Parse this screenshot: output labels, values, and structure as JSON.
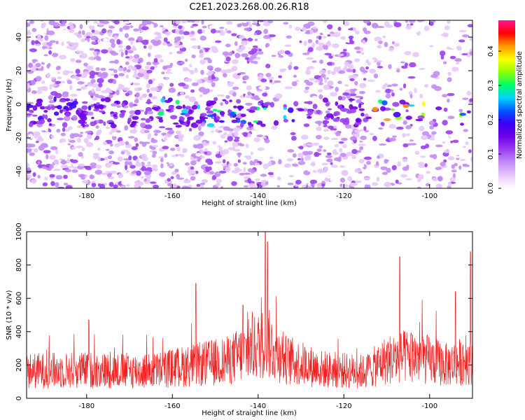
{
  "figure": {
    "title": "C2E1.2023.268.00.26.R18"
  },
  "colors": {
    "snr_line": "#ee2222",
    "axis": "#000000",
    "colormap": [
      "#ffffff",
      "#e7c8fb",
      "#c38cf7",
      "#9a3ff2",
      "#7000e8",
      "#3a00f5",
      "#0057ff",
      "#00d4ff",
      "#00ff66",
      "#8cff00",
      "#ffff00",
      "#ff9900",
      "#ff0000",
      "#ff1493"
    ]
  },
  "chart_data": [
    {
      "type": "heatmap",
      "title": "C2E1.2023.268.00.26.R18",
      "xlabel": "Height of straight line (km)",
      "ylabel": "Frequency (Hz)",
      "xlim": [
        -194,
        -90
      ],
      "ylim": [
        -50,
        50
      ],
      "x_ticks": [
        -180,
        -160,
        -140,
        -120,
        -100
      ],
      "y_ticks": [
        -40,
        -20,
        0,
        20,
        40
      ],
      "colorbar": {
        "label": "Normalized spectral amplitude",
        "range": [
          0.0,
          0.49
        ],
        "ticks": [
          0.0,
          0.1,
          0.2,
          0.3,
          0.4
        ]
      },
      "band": {
        "center_hz": -5,
        "half_width_hz": 8
      },
      "bright_regions_km": [
        {
          "from": -194,
          "to": -172,
          "peak": 0.2
        },
        {
          "from": -163,
          "to": -127,
          "peak": 0.3
        },
        {
          "from": -113,
          "to": -90,
          "peak": 0.46
        }
      ],
      "sparse_regions_km": [
        {
          "from": -138,
          "to": -129
        },
        {
          "from": -114,
          "to": -90
        }
      ]
    },
    {
      "type": "line",
      "xlabel": "Height of straight line (km)",
      "ylabel": "SNR (10 * v/v)",
      "xlim": [
        -194,
        -90
      ],
      "ylim": [
        0,
        1000
      ],
      "x_ticks": [
        -180,
        -160,
        -140,
        -120,
        -100
      ],
      "y_ticks": [
        0,
        200,
        400,
        600,
        800,
        1000
      ],
      "baseline": [
        {
          "x": -194,
          "y": 160
        },
        {
          "x": -180,
          "y": 165
        },
        {
          "x": -165,
          "y": 160
        },
        {
          "x": -155,
          "y": 195
        },
        {
          "x": -147,
          "y": 220
        },
        {
          "x": -142,
          "y": 280
        },
        {
          "x": -138,
          "y": 330
        },
        {
          "x": -134,
          "y": 230
        },
        {
          "x": -125,
          "y": 170
        },
        {
          "x": -115,
          "y": 155
        },
        {
          "x": -110,
          "y": 225
        },
        {
          "x": -104,
          "y": 250
        },
        {
          "x": -96,
          "y": 195
        },
        {
          "x": -90,
          "y": 230
        }
      ],
      "peaks": [
        {
          "x": -179.5,
          "y": 470
        },
        {
          "x": -154.5,
          "y": 690
        },
        {
          "x": -143.5,
          "y": 560
        },
        {
          "x": -138.3,
          "y": 1000
        },
        {
          "x": -137.8,
          "y": 940
        },
        {
          "x": -107,
          "y": 850
        },
        {
          "x": -94,
          "y": 640
        },
        {
          "x": -90.5,
          "y": 880
        }
      ]
    }
  ]
}
